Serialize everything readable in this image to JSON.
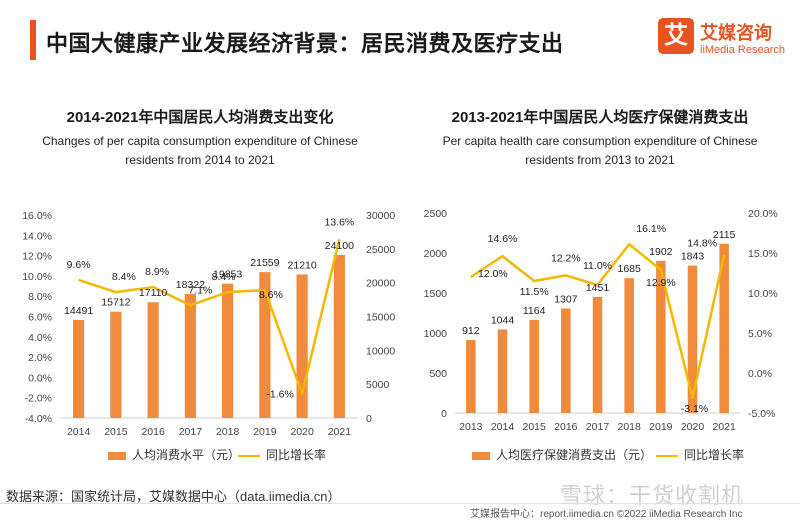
{
  "header": {
    "title": "中国大健康产业发展经济背景：居民消费及医疗支出",
    "logo_mark": "艾",
    "logo_cn": "艾媒咨询",
    "logo_en": "iiMedia Research"
  },
  "colors": {
    "bar": "#f08a3c",
    "line": "#f5b800",
    "accent": "#e8531f",
    "axis_text": "#444444"
  },
  "left_chart": {
    "title": "2014-2021年中国居民人均消费支出变化",
    "subtitle_line1": "Changes of per capita consumption expenditure of Chinese",
    "subtitle_line2": "residents from 2014 to 2021",
    "legend_bar": "人均消费水平（元）",
    "legend_line": "同比增长率"
  },
  "right_chart": {
    "title": "2013-2021年中国居民人均医疗保健消费支出",
    "subtitle_line1": "Per capita health care consumption expenditure of Chinese",
    "subtitle_line2": "residents from 2013 to 2021",
    "legend_bar": "人均医疗保健消费支出（元）",
    "legend_line": "同比增长率"
  },
  "chart_data": [
    {
      "type": "bar+line",
      "categories": [
        "2014",
        "2015",
        "2016",
        "2017",
        "2018",
        "2019",
        "2020",
        "2021"
      ],
      "series": [
        {
          "name": "人均消费水平（元）",
          "type": "bar",
          "axis": "right",
          "values": [
            14491,
            15712,
            17110,
            18322,
            19853,
            21559,
            21210,
            24100
          ],
          "labels": [
            "14491",
            "15712",
            "17110",
            "18322",
            "19853",
            "21559",
            "21210",
            "24100"
          ]
        },
        {
          "name": "同比增长率",
          "type": "line",
          "axis": "left",
          "values": [
            9.6,
            8.4,
            8.9,
            7.1,
            8.4,
            8.6,
            -1.6,
            13.6
          ],
          "labels": [
            "9.6%",
            "8.4%",
            "8.9%",
            "7.1%",
            "8.4%",
            "8.6%",
            "-1.6%",
            "13.6%"
          ]
        }
      ],
      "left_axis": {
        "min": -4,
        "max": 16,
        "ticks": [
          "-4.0%",
          "-2.0%",
          "0.0%",
          "2.0%",
          "4.0%",
          "6.0%",
          "8.0%",
          "10.0%",
          "12.0%",
          "14.0%",
          "16.0%"
        ]
      },
      "right_axis": {
        "min": 0,
        "max": 30000,
        "ticks": [
          "0",
          "5000",
          "10000",
          "15000",
          "20000",
          "25000",
          "30000"
        ]
      },
      "legend_placement": "bottom"
    },
    {
      "type": "bar+line",
      "categories": [
        "2013",
        "2014",
        "2015",
        "2016",
        "2017",
        "2018",
        "2019",
        "2020",
        "2021"
      ],
      "series": [
        {
          "name": "人均医疗保健消费支出（元）",
          "type": "bar",
          "axis": "left",
          "values": [
            912,
            1044,
            1164,
            1307,
            1451,
            1685,
            1902,
            1843,
            2115
          ],
          "labels": [
            "912",
            "1044",
            "1164",
            "1307",
            "1451",
            "1685",
            "1902",
            "1843",
            "2115"
          ]
        },
        {
          "name": "同比增长率",
          "type": "line",
          "axis": "right",
          "values": [
            12.0,
            14.6,
            11.5,
            12.2,
            11.0,
            16.1,
            12.9,
            -3.1,
            14.8
          ],
          "labels": [
            "12.0%",
            "14.6%",
            "11.5%",
            "12.2%",
            "11.0%",
            "16.1%",
            "12.9%",
            "-3.1%",
            "14.8%"
          ]
        }
      ],
      "left_axis": {
        "min": 0,
        "max": 2500,
        "ticks": [
          "0",
          "500",
          "1000",
          "1500",
          "2000",
          "2500"
        ]
      },
      "right_axis": {
        "min": -5,
        "max": 20,
        "ticks": [
          "-5.0%",
          "0.0%",
          "5.0%",
          "10.0%",
          "15.0%",
          "20.0%"
        ]
      },
      "legend_placement": "bottom"
    }
  ],
  "footer": {
    "source": "数据来源：国家统计局，艾媒数据中心（data.iimedia.cn）",
    "copyright": "艾媒报告中心：report.iimedia.cn  ©2022  iiMedia Research Inc",
    "watermark": "雪球：干货收割机"
  }
}
